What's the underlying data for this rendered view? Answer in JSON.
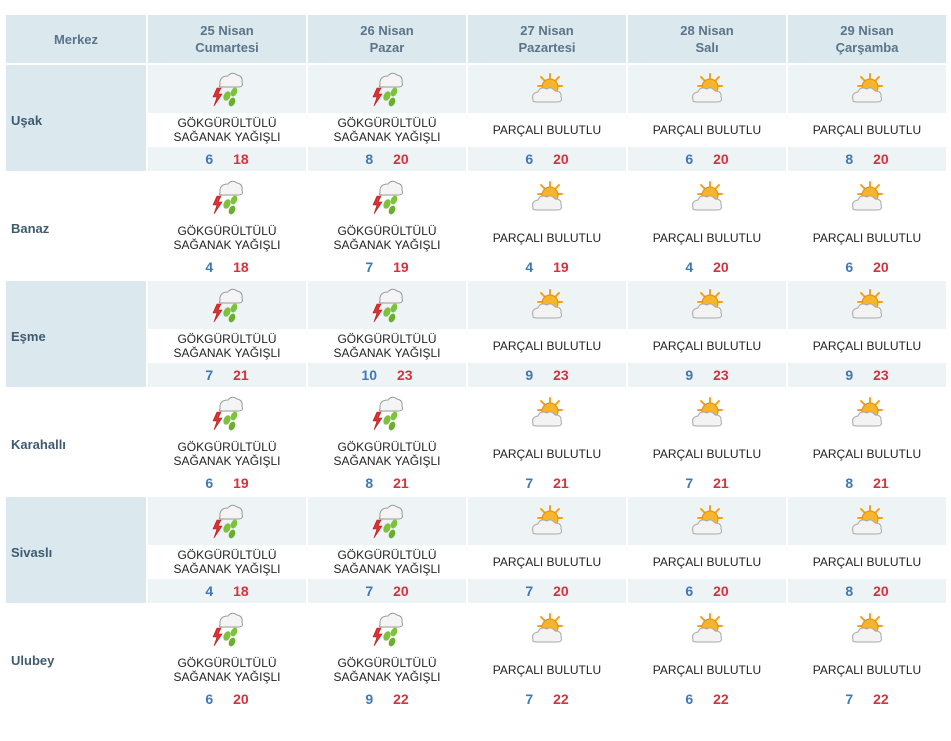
{
  "header": {
    "corner_label": "Merkez",
    "days": [
      {
        "date": "25 Nisan",
        "weekday": "Cumartesi"
      },
      {
        "date": "26 Nisan",
        "weekday": "Pazar"
      },
      {
        "date": "27 Nisan",
        "weekday": "Pazartesi"
      },
      {
        "date": "28 Nisan",
        "weekday": "Salı"
      },
      {
        "date": "29 Nisan",
        "weekday": "Çarşamba"
      }
    ]
  },
  "conditions": {
    "storm": {
      "line1": "GÖKGÜRÜLTÜLÜ",
      "line2": "SAĞANAK YAĞIŞLI",
      "icon": "thunderstorm-icon"
    },
    "partly": {
      "line1": "PARÇALI BULUTLU",
      "line2": "",
      "icon": "partly-cloudy-icon"
    }
  },
  "colors": {
    "min_temp": "#3f78b8",
    "max_temp": "#d6323c",
    "header_bg": "#dbe8ee"
  },
  "rows": [
    {
      "city": "Uşak",
      "days": [
        {
          "cond": "storm",
          "min": "6",
          "max": "18"
        },
        {
          "cond": "storm",
          "min": "8",
          "max": "20"
        },
        {
          "cond": "partly",
          "min": "6",
          "max": "20"
        },
        {
          "cond": "partly",
          "min": "6",
          "max": "20"
        },
        {
          "cond": "partly",
          "min": "8",
          "max": "20"
        }
      ]
    },
    {
      "city": "Banaz",
      "days": [
        {
          "cond": "storm",
          "min": "4",
          "max": "18"
        },
        {
          "cond": "storm",
          "min": "7",
          "max": "19"
        },
        {
          "cond": "partly",
          "min": "4",
          "max": "19"
        },
        {
          "cond": "partly",
          "min": "4",
          "max": "20"
        },
        {
          "cond": "partly",
          "min": "6",
          "max": "20"
        }
      ]
    },
    {
      "city": "Eşme",
      "days": [
        {
          "cond": "storm",
          "min": "7",
          "max": "21"
        },
        {
          "cond": "storm",
          "min": "10",
          "max": "23"
        },
        {
          "cond": "partly",
          "min": "9",
          "max": "23"
        },
        {
          "cond": "partly",
          "min": "9",
          "max": "23"
        },
        {
          "cond": "partly",
          "min": "9",
          "max": "23"
        }
      ]
    },
    {
      "city": "Karahallı",
      "days": [
        {
          "cond": "storm",
          "min": "6",
          "max": "19"
        },
        {
          "cond": "storm",
          "min": "8",
          "max": "21"
        },
        {
          "cond": "partly",
          "min": "7",
          "max": "21"
        },
        {
          "cond": "partly",
          "min": "7",
          "max": "21"
        },
        {
          "cond": "partly",
          "min": "8",
          "max": "21"
        }
      ]
    },
    {
      "city": "Sivaslı",
      "days": [
        {
          "cond": "storm",
          "min": "4",
          "max": "18"
        },
        {
          "cond": "storm",
          "min": "7",
          "max": "20"
        },
        {
          "cond": "partly",
          "min": "7",
          "max": "20"
        },
        {
          "cond": "partly",
          "min": "6",
          "max": "20"
        },
        {
          "cond": "partly",
          "min": "8",
          "max": "20"
        }
      ]
    },
    {
      "city": "Ulubey",
      "days": [
        {
          "cond": "storm",
          "min": "6",
          "max": "20"
        },
        {
          "cond": "storm",
          "min": "9",
          "max": "22"
        },
        {
          "cond": "partly",
          "min": "7",
          "max": "22"
        },
        {
          "cond": "partly",
          "min": "6",
          "max": "22"
        },
        {
          "cond": "partly",
          "min": "7",
          "max": "22"
        }
      ]
    }
  ]
}
